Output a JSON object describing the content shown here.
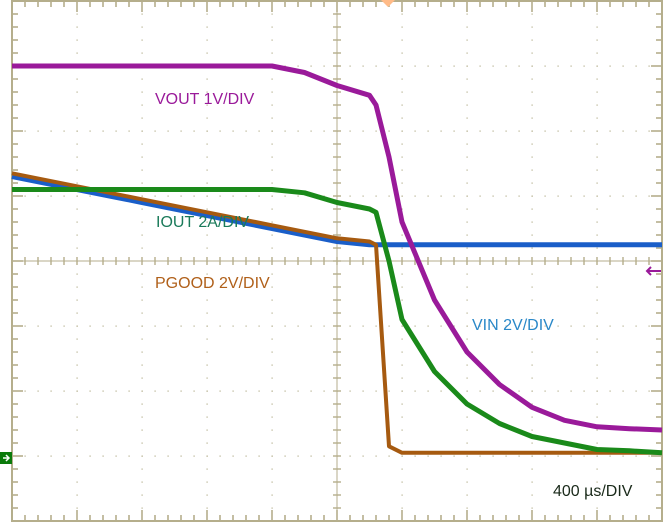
{
  "chart_data": {
    "type": "line",
    "title": "",
    "xlabel": "400 µs/DIV",
    "ylabel": "",
    "grid": true,
    "divisions": {
      "x": 10,
      "y": 8
    },
    "time_per_div_us": 400,
    "x": [
      0,
      0.5,
      1,
      1.5,
      2,
      2.5,
      3,
      3.5,
      4,
      4.5,
      5,
      5.5,
      5.6,
      5.8,
      6,
      6.5,
      7,
      7.5,
      8,
      8.5,
      9,
      9.5,
      10
    ],
    "x_unit": "divisions",
    "series": [
      {
        "name": "VOUT",
        "scale": "1V/DIV",
        "color": "#9a1a9a",
        "values": [
          6.0,
          6.0,
          6.0,
          6.0,
          6.0,
          6.0,
          6.0,
          6.0,
          6.0,
          5.9,
          5.7,
          5.55,
          5.4,
          4.6,
          3.6,
          2.4,
          1.6,
          1.1,
          0.75,
          0.55,
          0.45,
          0.42,
          0.4
        ]
      },
      {
        "name": "IOUT",
        "scale": "2A/DIV",
        "color": "#1a8a1a",
        "values": [
          4.1,
          4.1,
          4.1,
          4.1,
          4.1,
          4.1,
          4.1,
          4.1,
          4.1,
          4.05,
          3.9,
          3.8,
          3.75,
          3.0,
          2.1,
          1.3,
          0.8,
          0.5,
          0.3,
          0.2,
          0.1,
          0.08,
          0.05
        ]
      },
      {
        "name": "PGOOD",
        "scale": "2V/DIV",
        "color": "#a65a10",
        "values": [
          4.35,
          4.25,
          4.15,
          4.05,
          3.95,
          3.85,
          3.75,
          3.65,
          3.55,
          3.45,
          3.35,
          3.3,
          3.25,
          0.15,
          0.05,
          0.05,
          0.05,
          0.05,
          0.05,
          0.05,
          0.05,
          0.05,
          0.05
        ]
      },
      {
        "name": "VIN",
        "scale": "2V/DIV",
        "color": "#1a5ec8",
        "values": [
          4.3,
          4.2,
          4.1,
          4.0,
          3.9,
          3.8,
          3.7,
          3.6,
          3.5,
          3.4,
          3.3,
          3.25,
          3.25,
          3.25,
          3.25,
          3.25,
          3.25,
          3.25,
          3.25,
          3.25,
          3.25,
          3.25,
          3.25
        ]
      }
    ],
    "annotations": [
      "VOUT 1V/DIV",
      "IOUT 2A/DIV",
      "PGOOD 2V/DIV",
      "VIN 2V/DIV",
      "400 µs/DIV"
    ]
  },
  "labels": {
    "vout": "VOUT 1V/DIV",
    "iout": "IOUT 2A/DIV",
    "pgood": "PGOOD 2V/DIV",
    "vin": "VIN 2V/DIV",
    "timebase": "400 µs/DIV"
  },
  "colors": {
    "grid": "#b5ae8c",
    "vout": "#9a1a9a",
    "iout": "#1a8a1a",
    "iout_label": "#1a7a5a",
    "pgood": "#a65a10",
    "pgood_label": "#b0601a",
    "vin": "#1a5ec8",
    "vin_label": "#2a88c8",
    "timebase": "#1a2a1a",
    "trigger": "#ffbb88",
    "ground_marker": "#0a7a0a"
  }
}
